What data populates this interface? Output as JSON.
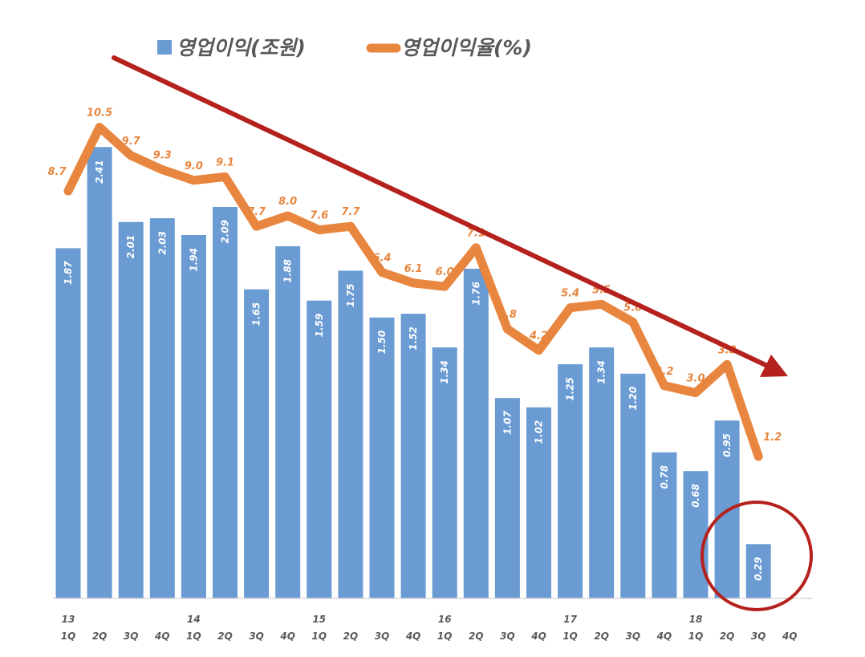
{
  "chart_data": {
    "type": "bar",
    "categories": [
      "13 1Q",
      "13 2Q",
      "13 3Q",
      "13 4Q",
      "14 1Q",
      "14 2Q",
      "14 3Q",
      "14 4Q",
      "15 1Q",
      "15 2Q",
      "15 3Q",
      "15 4Q",
      "16 1Q",
      "16 2Q",
      "16 3Q",
      "16 4Q",
      "17 1Q",
      "17 2Q",
      "17 3Q",
      "17 4Q",
      "18 1Q",
      "18 2Q",
      "18 3Q",
      "18 4Q"
    ],
    "x_tick_quarters": [
      "1Q",
      "2Q",
      "3Q",
      "4Q",
      "1Q",
      "2Q",
      "3Q",
      "4Q",
      "1Q",
      "2Q",
      "3Q",
      "4Q",
      "1Q",
      "2Q",
      "3Q",
      "4Q",
      "1Q",
      "2Q",
      "3Q",
      "4Q",
      "1Q",
      "2Q",
      "3Q",
      "4Q"
    ],
    "x_tick_years": [
      "13",
      "",
      "",
      "",
      "14",
      "",
      "",
      "",
      "15",
      "",
      "",
      "",
      "16",
      "",
      "",
      "",
      "17",
      "",
      "",
      "",
      "18",
      "",
      "",
      ""
    ],
    "series": [
      {
        "name": "영업이익(조원)",
        "type": "bar",
        "color": "#6a9bd3",
        "values": [
          1.87,
          2.41,
          2.01,
          2.03,
          1.94,
          2.09,
          1.65,
          1.88,
          1.59,
          1.75,
          1.5,
          1.52,
          1.34,
          1.76,
          1.07,
          1.02,
          1.25,
          1.34,
          1.2,
          0.78,
          0.68,
          0.95,
          0.29,
          null
        ],
        "labels": [
          "1.87",
          "2.41",
          "2.01",
          "2.03",
          "1.94",
          "2.09",
          "1.65",
          "1.88",
          "1.59",
          "1.75",
          "1.50",
          "1.52",
          "1.34",
          "1.76",
          "1.07",
          "1.02",
          "1.25",
          "1.34",
          "1.20",
          "0.78",
          "0.68",
          "0.95",
          "0.29",
          ""
        ]
      },
      {
        "name": "영업이익율(%)",
        "type": "line",
        "color": "#e8863f",
        "values": [
          8.7,
          10.5,
          9.7,
          9.3,
          9.0,
          9.1,
          7.7,
          8.0,
          7.6,
          7.7,
          6.4,
          6.1,
          6.0,
          7.1,
          4.8,
          4.2,
          5.4,
          5.5,
          5.0,
          3.2,
          3.0,
          3.8,
          1.2,
          null
        ],
        "labels": [
          "8.7",
          "10.5",
          "9.7",
          "9.3",
          "9.0",
          "9.1",
          "7.7",
          "8.0",
          "7.6",
          "7.7",
          "6.4",
          "6.1",
          "6.0",
          "7.1",
          "4.8",
          "4.2",
          "5.4",
          "5.5",
          "5.0",
          "3.2",
          "3.0",
          "3.8",
          "1.2",
          ""
        ]
      }
    ],
    "annotations": [
      "downward-trend-arrow",
      "circle-highlight-18-3Q"
    ],
    "annotation_color": "#b5211c",
    "legend_position": "top",
    "grid": false
  }
}
